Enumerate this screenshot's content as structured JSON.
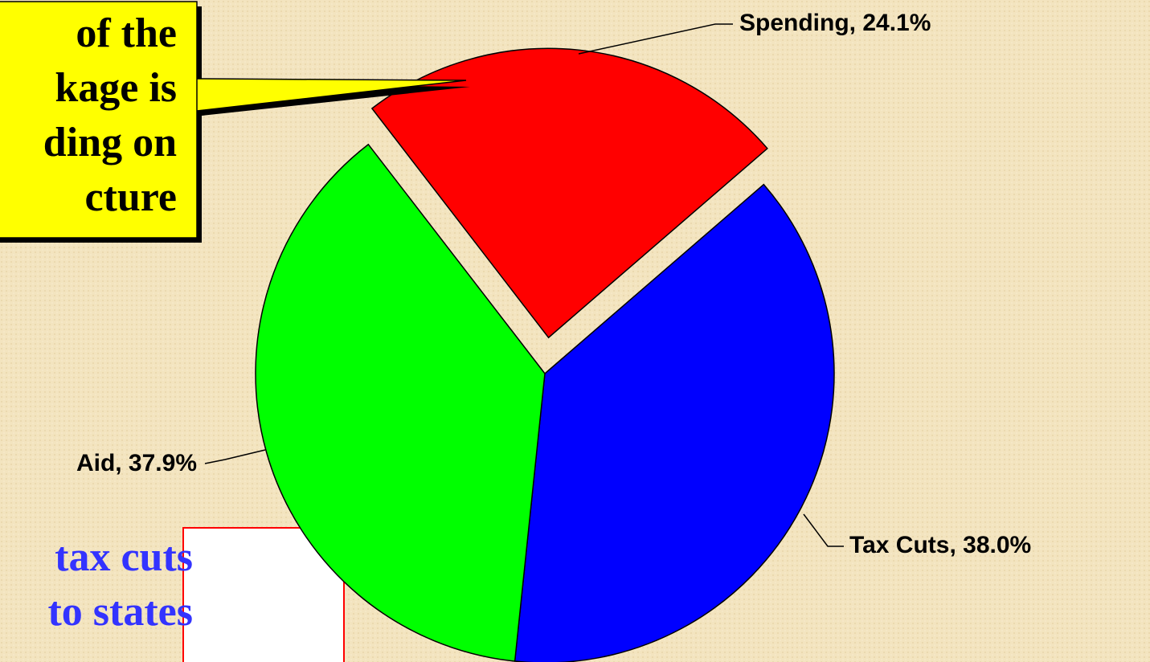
{
  "chart_data": {
    "type": "pie",
    "categories": [
      "Spending",
      "Tax Cuts",
      "Aid"
    ],
    "values": [
      24.1,
      38.0,
      37.9
    ],
    "value_labels": [
      "Spending, 24.1%",
      "Tax Cuts, 38.0%",
      "Aid, 37.9%"
    ],
    "colors": [
      "#ff0000",
      "#0000ff",
      "#00ff00"
    ],
    "exploded": [
      true,
      false,
      false
    ],
    "annotations": [
      {
        "lines": [
          "of the",
          "kage is",
          "ding on",
          "cture"
        ],
        "color": "#ffff00"
      },
      {
        "lines": [
          "tax cuts",
          "to states"
        ],
        "color": "#ffffff"
      }
    ]
  }
}
